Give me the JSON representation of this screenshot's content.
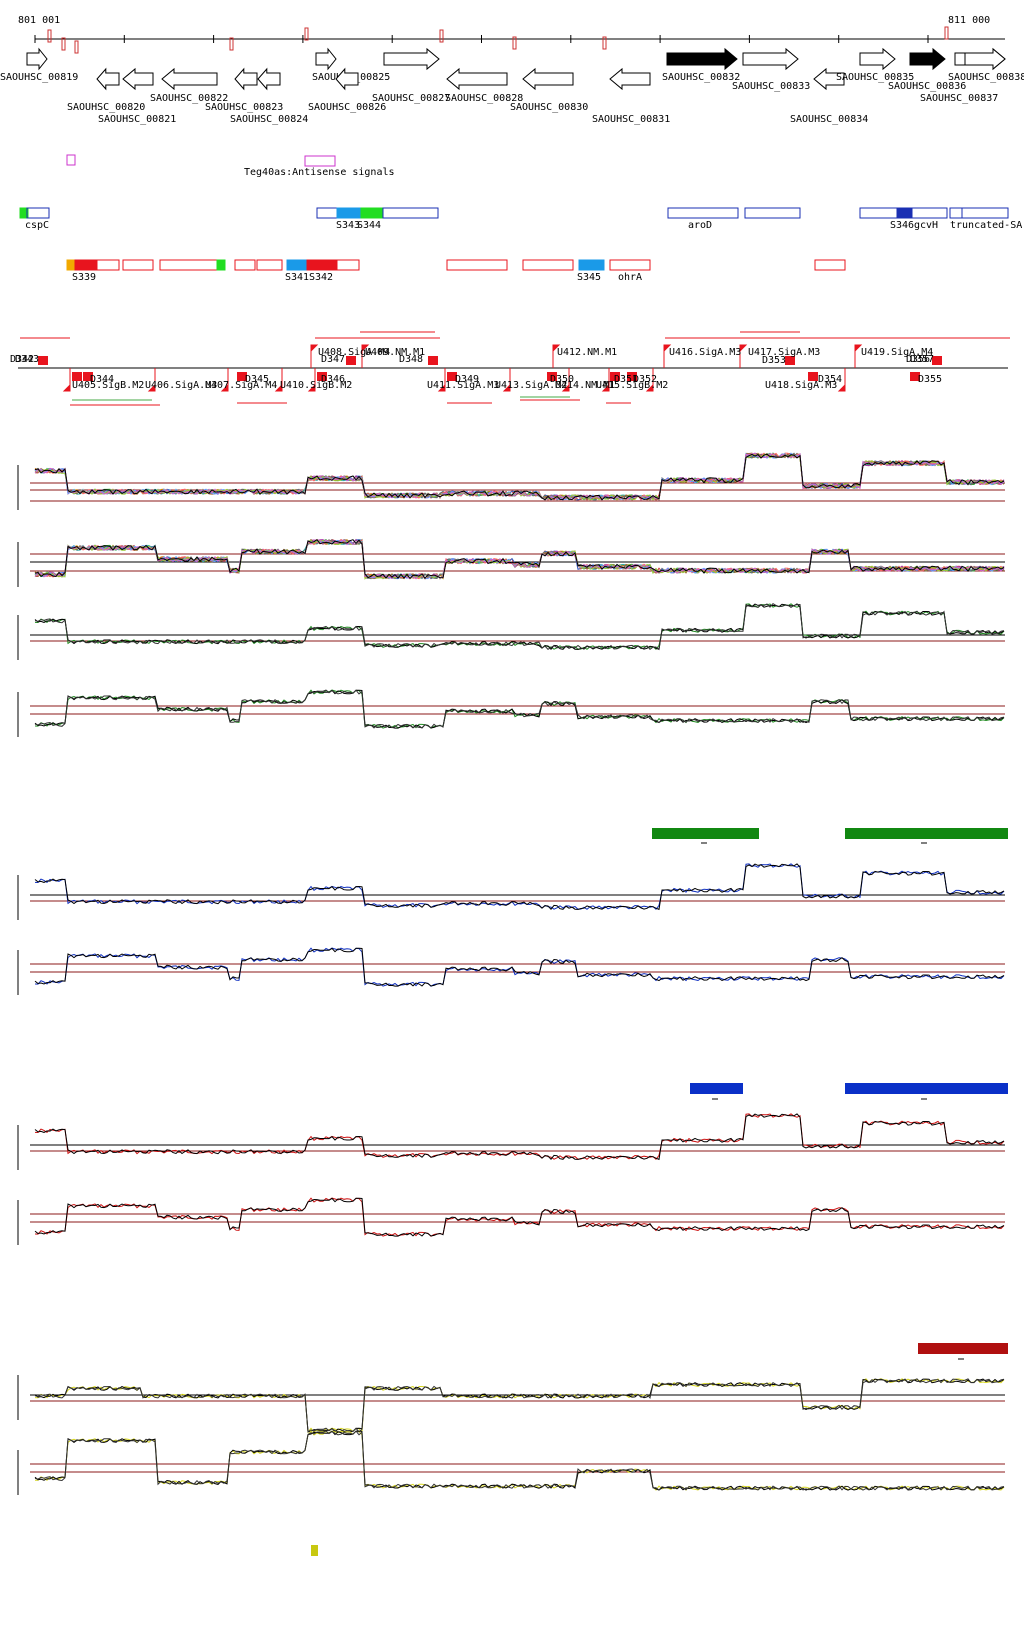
{
  "coordinates": {
    "start": "801 001",
    "end": "811 000"
  },
  "genes": [
    {
      "label": "SAOUHSC_00819",
      "dir": "+",
      "fill": "#ffffff"
    },
    {
      "label": "SAOUHSC_00820",
      "dir": "-",
      "fill": "#ffffff"
    },
    {
      "label": "SAOUHSC_00821",
      "dir": "-",
      "fill": "#ffffff"
    },
    {
      "label": "SAOUHSC_00822",
      "dir": "-",
      "fill": "#ffffff"
    },
    {
      "label": "SAOUHSC_00823",
      "dir": "-",
      "fill": "#ffffff"
    },
    {
      "label": "SAOUHSC_00824",
      "dir": "-",
      "fill": "#ffffff"
    },
    {
      "label": "SAOUHSC_00825",
      "dir": "+",
      "fill": "#ffffff"
    },
    {
      "label": "SAOUHSC_00826",
      "dir": "-",
      "fill": "#ffffff"
    },
    {
      "label": "SAOUHSC_00827",
      "dir": "+",
      "fill": "#ffffff"
    },
    {
      "label": "SAOUHSC_00828",
      "dir": "-",
      "fill": "#ffffff"
    },
    {
      "label": "SAOUHSC_00830",
      "dir": "-",
      "fill": "#ffffff"
    },
    {
      "label": "SAOUHSC_00831",
      "dir": "-",
      "fill": "#ffffff"
    },
    {
      "label": "SAOUHSC_00832",
      "dir": "+",
      "fill": "#000000"
    },
    {
      "label": "SAOUHSC_00833",
      "dir": "+",
      "fill": "#ffffff"
    },
    {
      "label": "SAOUHSC_00834",
      "dir": "-",
      "fill": "#ffffff"
    },
    {
      "label": "SAOUHSC_00835",
      "dir": "+",
      "fill": "#ffffff"
    },
    {
      "label": "SAOUHSC_00836",
      "dir": "+",
      "fill": "#000000"
    },
    {
      "label": "SAOUHSC_00837",
      "dir": "+",
      "fill": "#ffffff"
    },
    {
      "label": "SAOUHSC_00838",
      "dir": "+",
      "fill": "#ffffff"
    }
  ],
  "antisense_label": "Teg40as:Antisense signals",
  "srna_labels": [
    "cspC",
    "S343",
    "S344",
    "aroD",
    "S346",
    "gcvH",
    "truncated-SA"
  ],
  "srna_labels2": [
    "S339",
    "S341",
    "S342",
    "S345",
    "ohrA"
  ],
  "upper_labels": [
    "U408.SigA.M4",
    "U409.NM.M1",
    "U412.NM.M1",
    "U416.SigA.M3",
    "U417.SigA.M3",
    "U419.SigA.M4",
    "D347",
    "D348",
    "D353",
    "D356",
    "D357",
    "D342",
    "D343"
  ],
  "lower_labels": [
    "U405.SigB.M2",
    "U406.SigA.M3",
    "U407.SigA.M4",
    "U410.SigB.M2",
    "U411.SigA.M3",
    "U413.SigA.M2",
    "U414.NM.M1",
    "U415.SigB.M2",
    "U418.SigA.M3",
    "D344",
    "D345",
    "D346",
    "D349",
    "D350",
    "D351",
    "D352",
    "D354",
    "D355"
  ],
  "colors": {
    "gene_outline": "#000000",
    "srna_blue": "#1a2fb3",
    "srna_red": "#e8141e",
    "srna_green": "#22dd22",
    "srna_lightblue": "#1a9ae8",
    "antisense": "#cc33cc",
    "green_series": "#228b22",
    "blue_series": "#1030c0",
    "red_series": "#cc1111",
    "yellow_series": "#d7d720",
    "threshold": "#8b1a1a",
    "bar_green": "#118811",
    "bar_blue": "#0a30c8",
    "bar_red": "#b01010",
    "bar_yellow": "#c8c810"
  }
}
